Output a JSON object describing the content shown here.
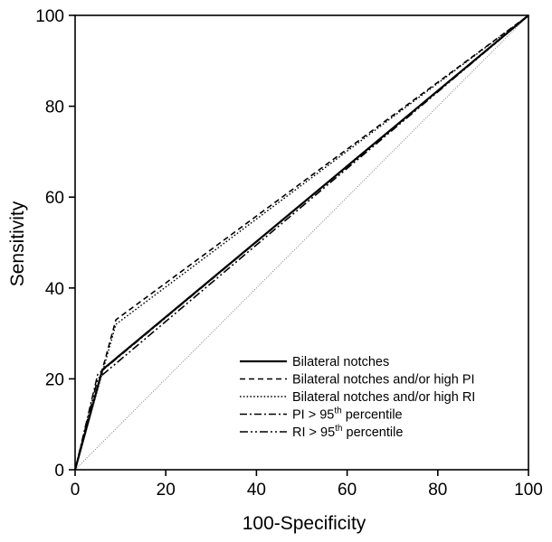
{
  "chart_data": {
    "type": "line",
    "title": "",
    "xlabel": "100-Specificity",
    "ylabel": "Sensitivity",
    "xlim": [
      0,
      100
    ],
    "ylim": [
      0,
      100
    ],
    "x_ticks": [
      "0",
      "20",
      "40",
      "60",
      "80",
      "100"
    ],
    "y_ticks": [
      "0",
      "20",
      "40",
      "60",
      "80",
      "100"
    ],
    "grid": false,
    "legend_position": "bottom-right",
    "reference_line": {
      "name": "",
      "x": [
        0,
        100
      ],
      "y": [
        0,
        100
      ]
    },
    "series": [
      {
        "name": "Bilateral notches",
        "dash": "solid",
        "x": [
          0,
          6,
          100
        ],
        "y": [
          0,
          22,
          100
        ]
      },
      {
        "name": "Bilateral notches and/or high PI",
        "dash": "dashed",
        "x": [
          0,
          9,
          100
        ],
        "y": [
          0,
          33,
          100
        ]
      },
      {
        "name": "Bilateral notches and/or high RI",
        "dash": "dotted",
        "x": [
          0,
          9,
          100
        ],
        "y": [
          0,
          32,
          100
        ]
      },
      {
        "name": "PI > 95",
        "sup": "th",
        "suffix": " percentile",
        "dash": "dashdot",
        "x": [
          0,
          5,
          100
        ],
        "y": [
          0,
          21,
          100
        ]
      },
      {
        "name": "RI > 95",
        "sup": "th",
        "suffix": " percentile",
        "dash": "dashdotdot",
        "x": [
          0,
          5,
          100
        ],
        "y": [
          0,
          20,
          100
        ]
      }
    ]
  }
}
